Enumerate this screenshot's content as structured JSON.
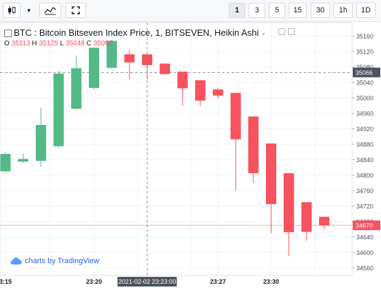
{
  "toolbar": {
    "intervals": [
      "1",
      "3",
      "5",
      "15",
      "30",
      "1h",
      "1D"
    ],
    "active_interval": "1"
  },
  "legend": {
    "title": "BTC : Bitcoin Bitseven Index Price, 1, BITSEVEN, Heikin Ashi",
    "o_label": "O",
    "o_value": "35113",
    "h_label": "H",
    "h_value": "35125",
    "l_label": "L",
    "l_value": "35048",
    "c_label": "C",
    "c_value": "35092"
  },
  "watermark": {
    "text": "charts by TradingView"
  },
  "crosshair": {
    "time_label": "2021-02-02 23:23:00",
    "price_label": "35066"
  },
  "last_price_label": "34670",
  "chart_data": {
    "type": "candlestick",
    "ylim": [
      34540,
      35195
    ],
    "y_ticks": [
      35160,
      35120,
      35080,
      35040,
      35000,
      34960,
      34920,
      34880,
      34840,
      34800,
      34760,
      34720,
      34680,
      34640,
      34600,
      34560
    ],
    "x_ticks": [
      {
        "label": "3:15",
        "bar": 0
      },
      {
        "label": "23:20",
        "bar": 5
      },
      {
        "label": "23:27",
        "bar": 12
      },
      {
        "label": "23:30",
        "bar": 15
      }
    ],
    "candles": [
      {
        "o": 34810,
        "h": 34860,
        "l": 34805,
        "c": 34855
      },
      {
        "o": 34835,
        "h": 34855,
        "l": 34832,
        "c": 34842
      },
      {
        "o": 34837,
        "h": 34975,
        "l": 34822,
        "c": 34930
      },
      {
        "o": 34875,
        "h": 35070,
        "l": 34870,
        "c": 35063
      },
      {
        "o": 34972,
        "h": 35110,
        "l": 34970,
        "c": 35077
      },
      {
        "o": 35026,
        "h": 35132,
        "l": 35022,
        "c": 35130
      },
      {
        "o": 35078,
        "h": 35150,
        "l": 35075,
        "c": 35148
      },
      {
        "o": 35113,
        "h": 35125,
        "l": 35048,
        "c": 35092
      },
      {
        "o": 35113,
        "h": 35113,
        "l": 35048,
        "c": 35085
      },
      {
        "o": 35089,
        "h": 35089,
        "l": 35060,
        "c": 35062
      },
      {
        "o": 35068,
        "h": 35068,
        "l": 34980,
        "c": 35025
      },
      {
        "o": 35046,
        "h": 35046,
        "l": 34980,
        "c": 34993
      },
      {
        "o": 35022,
        "h": 35026,
        "l": 34998,
        "c": 35006
      },
      {
        "o": 35013,
        "h": 35013,
        "l": 34760,
        "c": 34893
      },
      {
        "o": 34952,
        "h": 34952,
        "l": 34780,
        "c": 34805
      },
      {
        "o": 34882,
        "h": 34882,
        "l": 34650,
        "c": 34725
      },
      {
        "o": 34805,
        "h": 34805,
        "l": 34590,
        "c": 34652
      },
      {
        "o": 34730,
        "h": 34730,
        "l": 34630,
        "c": 34653
      },
      {
        "o": 34692,
        "h": 34692,
        "l": 34660,
        "c": 34670
      }
    ],
    "up_color": "#53b987",
    "down_color": "#f7525f"
  }
}
